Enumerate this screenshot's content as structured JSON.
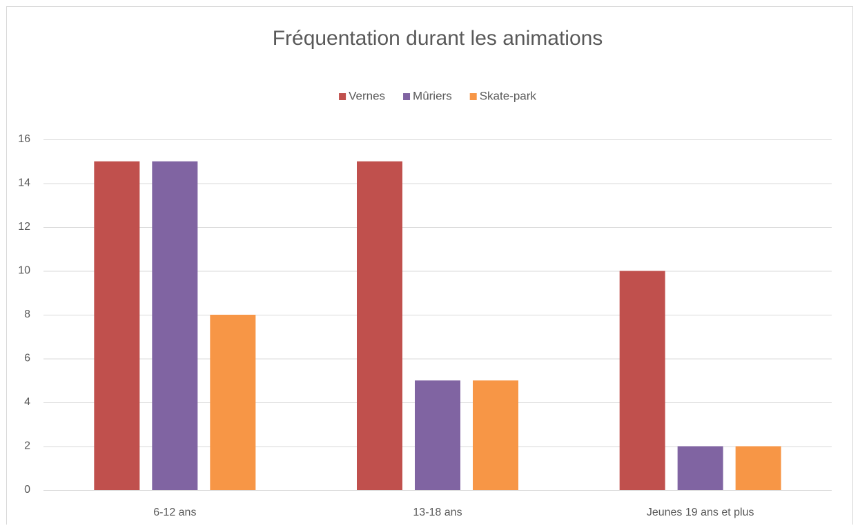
{
  "chart_data": {
    "type": "bar",
    "title": "Fréquentation durant les animations",
    "categories": [
      "6-12 ans",
      "13-18 ans",
      "Jeunes 19 ans et plus"
    ],
    "series": [
      {
        "name": "Vernes",
        "color": "#c0504d",
        "values": [
          15,
          15,
          10
        ]
      },
      {
        "name": "Mûriers",
        "color": "#8064a2",
        "values": [
          15,
          5,
          2
        ]
      },
      {
        "name": "Skate-park",
        "color": "#f79646",
        "values": [
          8,
          5,
          2
        ]
      }
    ],
    "ylim": [
      0,
      16
    ],
    "yticks": [
      0,
      2,
      4,
      6,
      8,
      10,
      12,
      14,
      16
    ],
    "grid": true,
    "legend": "top"
  }
}
